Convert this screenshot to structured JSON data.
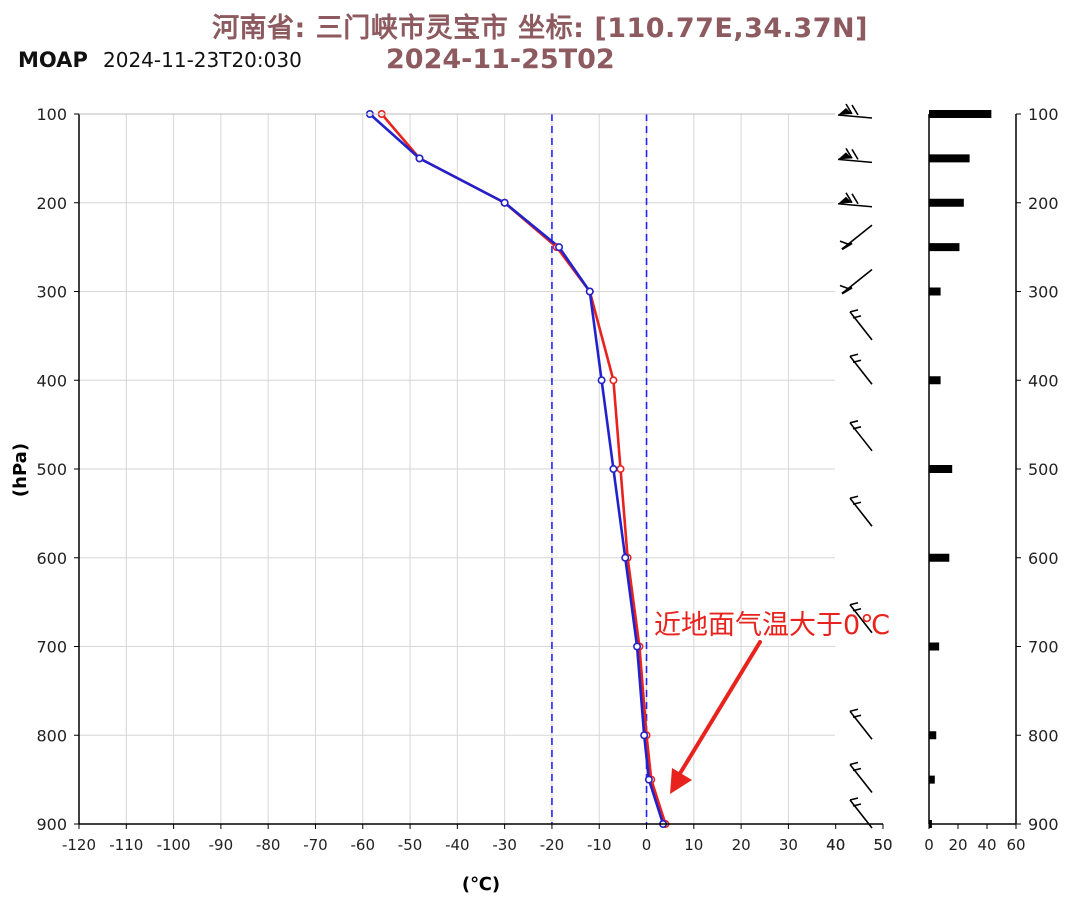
{
  "header": {
    "title": "河南省: 三门峡市灵宝市 坐标: [110.77E,34.37N]",
    "valid_time": "2024-11-25T02",
    "model": "MOAP",
    "run_time": "2024-11-23T20:030"
  },
  "annotation": {
    "text": "近地面气温大于0℃",
    "color": "#e8231e"
  },
  "chart_data": {
    "type": "line",
    "ylabel": "(hPa)",
    "xlabel": "(℃)",
    "xlim": [
      -120,
      50
    ],
    "ylim": [
      100,
      900
    ],
    "y_reversed": true,
    "x_ticks": [
      "-120",
      "-110",
      "-100",
      "-90",
      "-80",
      "-70",
      "-60",
      "-50",
      "-40",
      "-30",
      "-20",
      "-10",
      "0",
      "10",
      "20",
      "30",
      "40",
      "50"
    ],
    "y_ticks": [
      "100",
      "200",
      "300",
      "400",
      "500",
      "600",
      "700",
      "800",
      "900"
    ],
    "grid": true,
    "reference_lines_x": [
      -20,
      0
    ],
    "series": [
      {
        "color": "#e8231e",
        "points": [
          [
            -56,
            100
          ],
          [
            -48,
            150
          ],
          [
            -30,
            200
          ],
          [
            -19,
            250
          ],
          [
            -12,
            300
          ],
          [
            -7,
            400
          ],
          [
            -5.5,
            500
          ],
          [
            -4,
            600
          ],
          [
            -1.5,
            700
          ],
          [
            0,
            800
          ],
          [
            1,
            850
          ],
          [
            4,
            900
          ]
        ]
      },
      {
        "color": "#2222cc",
        "points": [
          [
            -58.5,
            100
          ],
          [
            -48,
            150
          ],
          [
            -30,
            200
          ],
          [
            -18.5,
            250
          ],
          [
            -12,
            300
          ],
          [
            -9.5,
            400
          ],
          [
            -7,
            500
          ],
          [
            -4.5,
            600
          ],
          [
            -2,
            700
          ],
          [
            -0.5,
            800
          ],
          [
            0.5,
            850
          ],
          [
            3.5,
            900
          ]
        ]
      }
    ],
    "wind_panel": {
      "x_ticks": [
        "40",
        "50"
      ],
      "levels": [
        100,
        150,
        200,
        250,
        300,
        350,
        400,
        475,
        560,
        680,
        800,
        860,
        900
      ]
    },
    "bar_panel": {
      "x_ticks": [
        "0",
        "20",
        "40",
        "60"
      ],
      "xlim": [
        0,
        60
      ],
      "y_ticks": [
        "100",
        "200",
        "300",
        "400",
        "500",
        "600",
        "700",
        "800",
        "900"
      ],
      "bars": [
        [
          100,
          43
        ],
        [
          150,
          28
        ],
        [
          200,
          24
        ],
        [
          250,
          21
        ],
        [
          300,
          8
        ],
        [
          400,
          8
        ],
        [
          500,
          16
        ],
        [
          600,
          14
        ],
        [
          700,
          7
        ],
        [
          800,
          5
        ],
        [
          850,
          4
        ],
        [
          900,
          2
        ]
      ]
    },
    "colors": {
      "grid": "#d6d6d6",
      "reference": "#2222ff",
      "axis": "#000000",
      "bar": "#000000"
    }
  }
}
